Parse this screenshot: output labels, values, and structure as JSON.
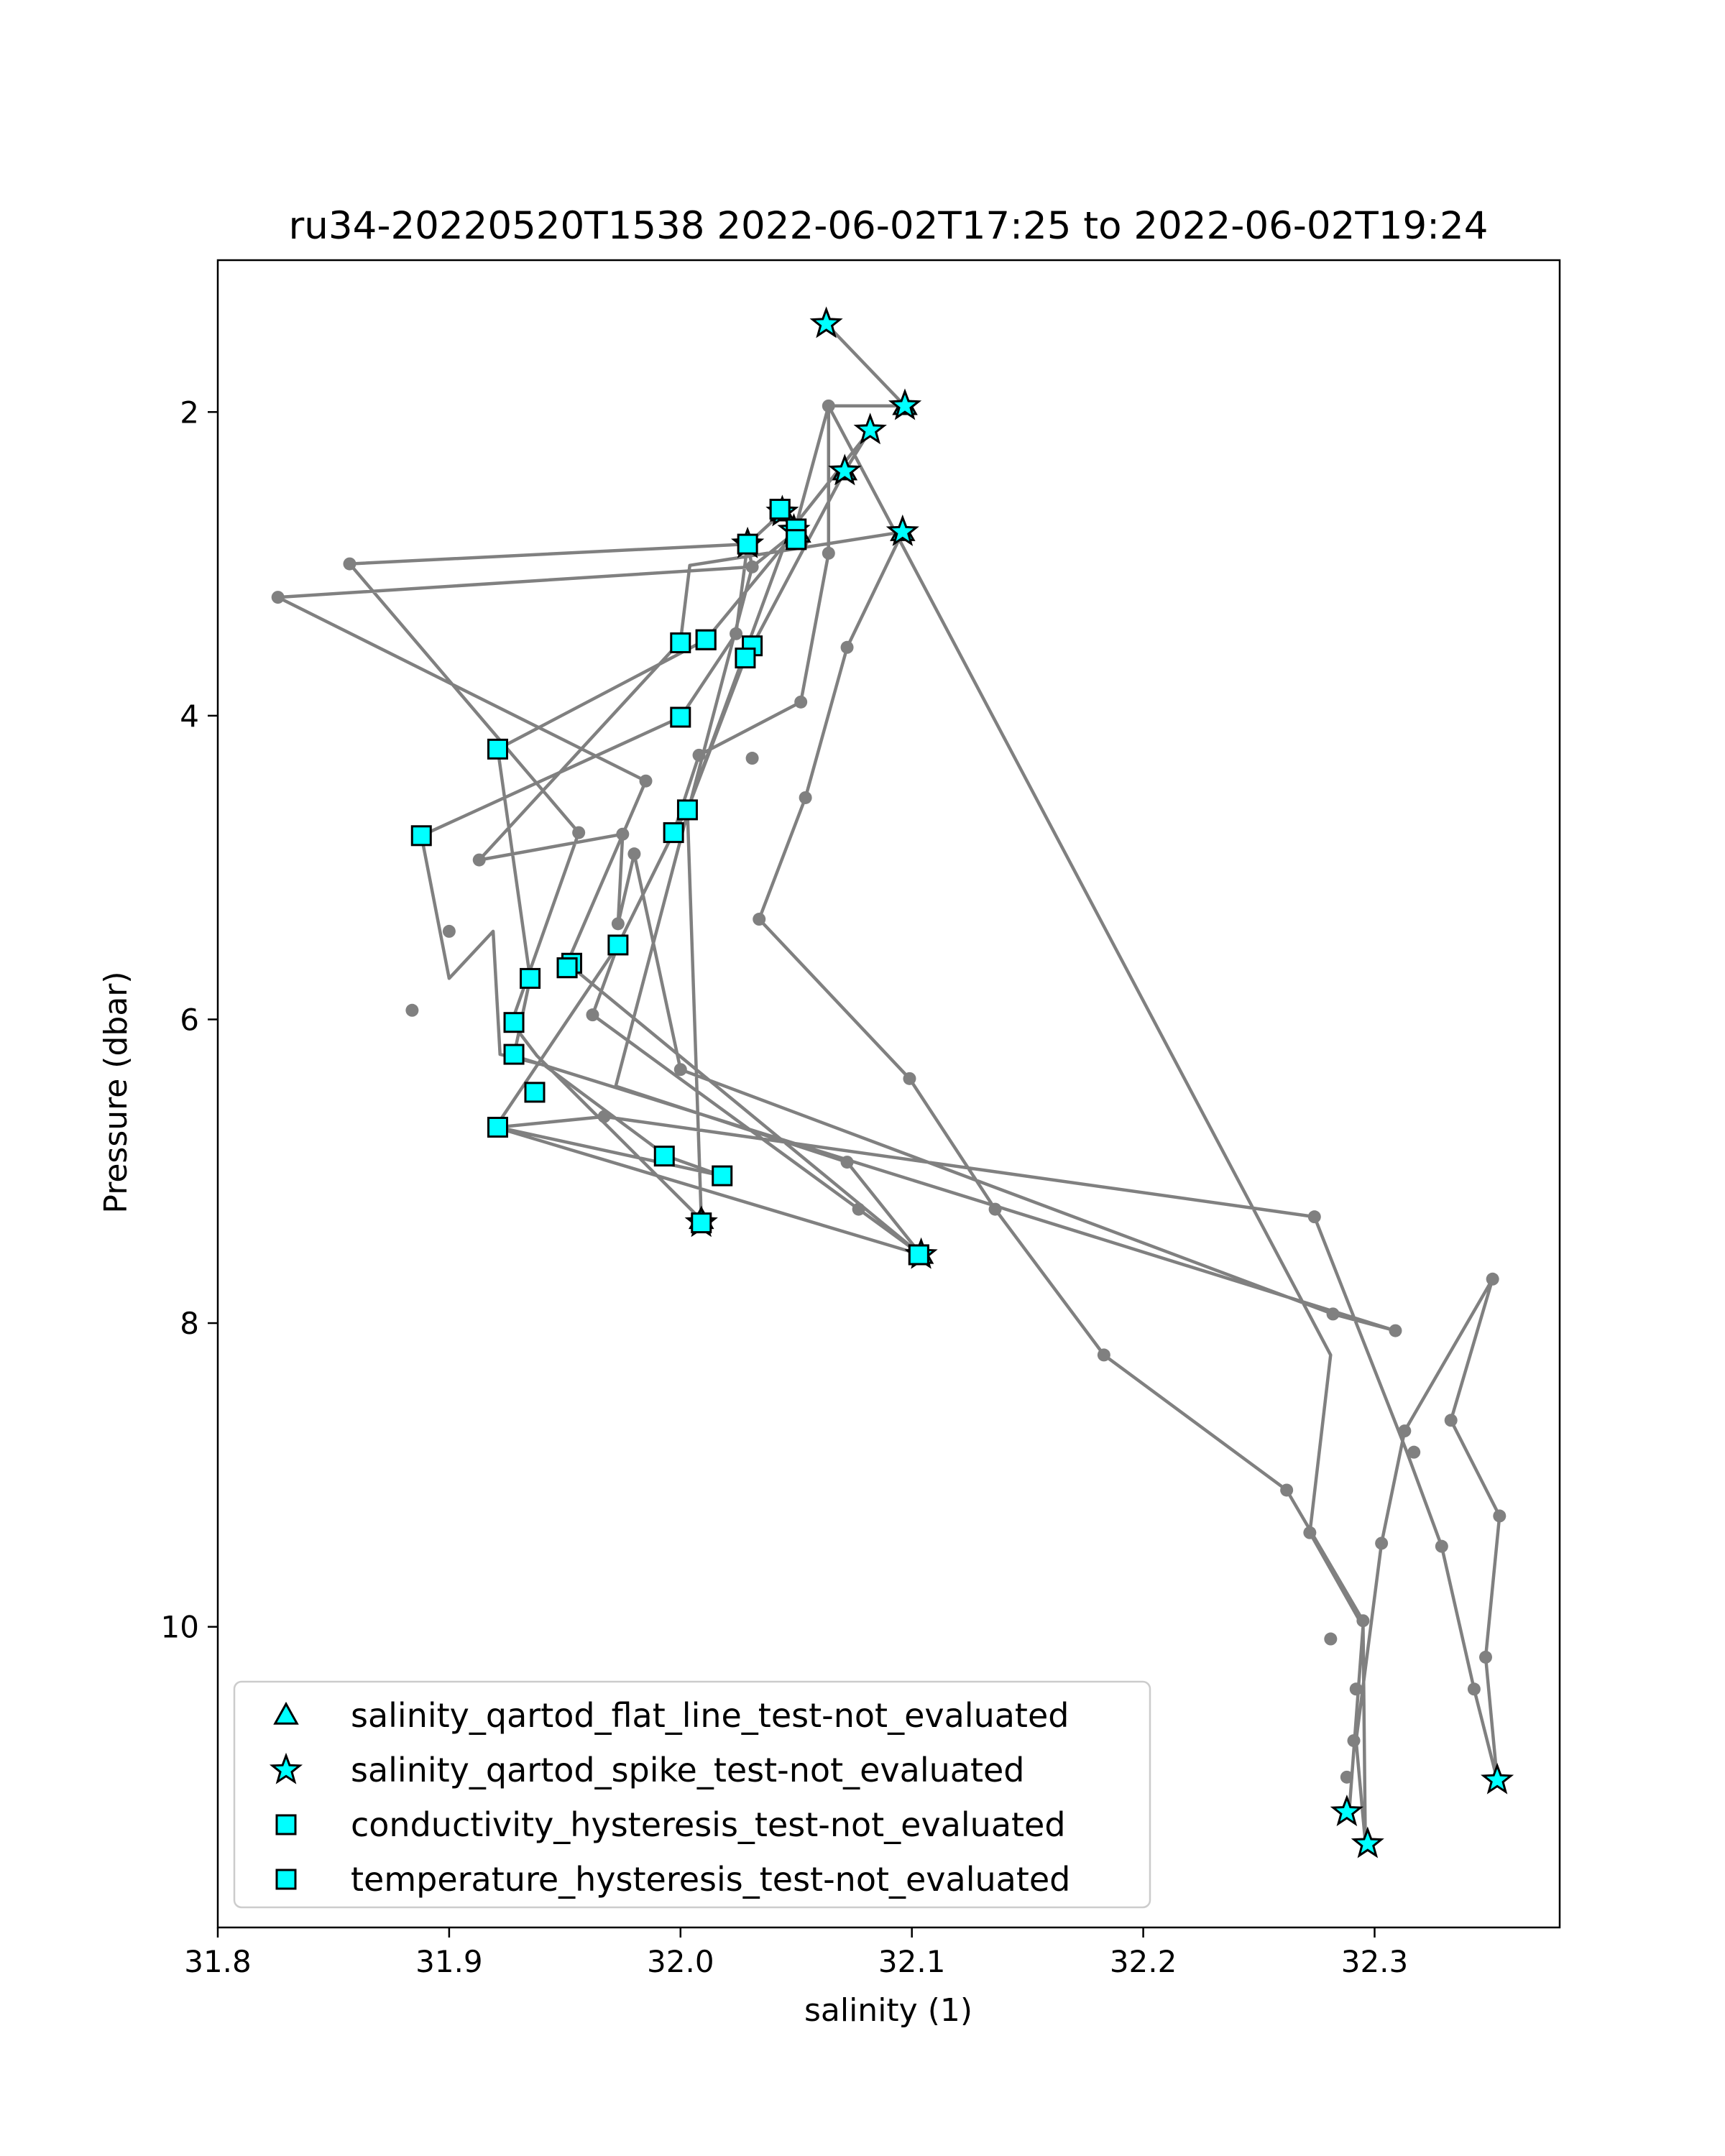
{
  "chart_data": {
    "type": "scatter",
    "title": "ru34-20220520T1538 2022-06-02T17:25 to 2022-06-02T19:24",
    "xlabel": "salinity (1)",
    "ylabel": "Pressure (dbar)",
    "xlim": [
      31.8,
      32.38
    ],
    "ylim": [
      11.98,
      1.0
    ],
    "y_inverted": true,
    "grid": false,
    "legend_position": "lower-left",
    "xticks": [
      31.8,
      31.9,
      32.0,
      32.1,
      32.2,
      32.3
    ],
    "xtick_labels": [
      "31.8",
      "31.9",
      "32.0",
      "32.1",
      "32.2",
      "32.3"
    ],
    "yticks": [
      2,
      4,
      6,
      8,
      10
    ],
    "ytick_labels": [
      "2",
      "4",
      "6",
      "8",
      "10"
    ],
    "colors": {
      "line": "#808080",
      "marker_fill": "#00ffff",
      "marker_edge": "#000000"
    },
    "profile_line": {
      "points": [
        [
          32.063,
          1.42
        ],
        [
          32.097,
          1.96
        ],
        [
          32.064,
          1.96
        ],
        [
          32.049,
          2.8
        ],
        [
          32.044,
          2.66
        ],
        [
          32.029,
          2.87
        ],
        [
          31.857,
          3.0
        ],
        [
          31.956,
          4.77
        ],
        [
          31.927,
          6.02
        ],
        [
          31.938,
          6.24
        ],
        [
          32.009,
          7.32
        ],
        [
          32.003,
          4.62
        ],
        [
          32.047,
          2.79
        ],
        [
          32.082,
          2.12
        ],
        [
          32.071,
          2.39
        ],
        [
          32.031,
          3.54
        ],
        [
          32.028,
          3.62
        ],
        [
          32.003,
          4.62
        ],
        [
          31.997,
          4.77
        ],
        [
          31.973,
          5.51
        ],
        [
          31.92,
          6.71
        ],
        [
          32.104,
          7.55
        ],
        [
          31.951,
          5.63
        ],
        [
          31.985,
          4.43
        ],
        [
          31.826,
          3.22
        ],
        [
          32.031,
          3.02
        ],
        [
          32.049,
          2.8
        ],
        [
          32.011,
          3.5
        ],
        [
          31.921,
          4.22
        ],
        [
          31.935,
          5.73
        ],
        [
          31.928,
          6.24
        ],
        [
          32.309,
          8.05
        ],
        [
          32.282,
          7.94
        ],
        [
          32.0,
          6.33
        ],
        [
          31.98,
          4.91
        ],
        [
          31.973,
          5.37
        ],
        [
          31.975,
          4.78
        ],
        [
          31.913,
          4.95
        ],
        [
          32.0,
          3.51
        ],
        [
          32.004,
          3.01
        ],
        [
          32.096,
          2.79
        ],
        [
          32.072,
          3.55
        ],
        [
          32.054,
          4.54
        ],
        [
          32.034,
          5.34
        ],
        [
          32.099,
          6.39
        ],
        [
          32.136,
          7.25
        ],
        [
          32.183,
          8.21
        ],
        [
          32.262,
          9.1
        ],
        [
          32.295,
          9.96
        ],
        [
          32.296,
          11.42
        ],
        [
          32.292,
          10.75
        ],
        [
          32.303,
          9.45
        ],
        [
          32.313,
          8.71
        ],
        [
          32.351,
          7.71
        ],
        [
          32.333,
          8.64
        ],
        [
          32.354,
          9.27
        ],
        [
          32.348,
          10.2
        ],
        [
          32.353,
          11.01
        ],
        [
          32.343,
          10.41
        ],
        [
          32.329,
          9.47
        ],
        [
          32.314,
          8.85
        ],
        [
          32.274,
          7.3
        ],
        [
          31.967,
          6.64
        ],
        [
          31.921,
          6.71
        ],
        [
          32.018,
          7.03
        ],
        [
          31.994,
          6.9
        ],
        [
          31.941,
          6.3
        ],
        [
          31.922,
          6.23
        ],
        [
          31.919,
          5.42
        ],
        [
          31.9,
          5.73
        ],
        [
          31.888,
          4.79
        ],
        [
          32.0,
          4.01
        ],
        [
          32.024,
          3.46
        ],
        [
          32.029,
          2.87
        ],
        [
          32.031,
          3.02
        ],
        [
          31.972,
          6.44
        ],
        [
          32.072,
          6.94
        ],
        [
          32.104,
          7.55
        ],
        [
          32.077,
          7.25
        ],
        [
          31.962,
          5.97
        ],
        [
          31.973,
          5.51
        ],
        [
          31.997,
          4.77
        ],
        [
          32.008,
          4.26
        ],
        [
          32.052,
          3.91
        ],
        [
          32.064,
          2.93
        ],
        [
          32.064,
          1.96
        ],
        [
          32.281,
          8.21
        ],
        [
          32.272,
          9.38
        ],
        [
          32.295,
          10.0
        ],
        [
          32.289,
          11.22
        ]
      ]
    },
    "small_dots": [
      [
        32.064,
        1.96
      ],
      [
        32.052,
        3.91
      ],
      [
        32.054,
        4.54
      ],
      [
        32.034,
        5.34
      ],
      [
        32.099,
        6.39
      ],
      [
        32.136,
        7.25
      ],
      [
        32.183,
        8.21
      ],
      [
        32.262,
        9.1
      ],
      [
        32.272,
        9.38
      ],
      [
        32.281,
        10.08
      ],
      [
        32.295,
        9.96
      ],
      [
        32.292,
        10.41
      ],
      [
        32.291,
        10.75
      ],
      [
        32.288,
        10.99
      ],
      [
        32.303,
        9.45
      ],
      [
        32.313,
        8.71
      ],
      [
        32.317,
        8.85
      ],
      [
        32.309,
        8.05
      ],
      [
        32.282,
        7.94
      ],
      [
        32.274,
        7.3
      ],
      [
        32.351,
        7.71
      ],
      [
        32.333,
        8.64
      ],
      [
        32.354,
        9.27
      ],
      [
        32.348,
        10.2
      ],
      [
        32.343,
        10.41
      ],
      [
        32.329,
        9.47
      ],
      [
        31.857,
        3.0
      ],
      [
        31.826,
        3.22
      ],
      [
        31.956,
        4.77
      ],
      [
        31.985,
        4.43
      ],
      [
        31.913,
        4.95
      ],
      [
        31.9,
        5.42
      ],
      [
        31.884,
        5.94
      ],
      [
        31.975,
        4.78
      ],
      [
        31.98,
        4.91
      ],
      [
        31.973,
        5.37
      ],
      [
        32.0,
        6.33
      ],
      [
        31.962,
        5.97
      ],
      [
        31.967,
        6.64
      ],
      [
        32.072,
        6.94
      ],
      [
        32.077,
        7.25
      ],
      [
        32.024,
        3.46
      ],
      [
        32.031,
        3.02
      ],
      [
        32.064,
        2.93
      ],
      [
        32.072,
        3.55
      ],
      [
        32.008,
        4.26
      ],
      [
        32.031,
        4.28
      ]
    ],
    "series": [
      {
        "name": "salinity_qartod_flat_line_test-not_evaluated",
        "marker": "triangle",
        "points": [
          [
            32.104,
            7.55
          ],
          [
            32.009,
            7.32
          ],
          [
            32.096,
            2.79
          ],
          [
            32.071,
            2.39
          ],
          [
            32.051,
            2.8
          ],
          [
            32.044,
            2.66
          ],
          [
            32.097,
            1.96
          ]
        ]
      },
      {
        "name": "salinity_qartod_spike_test-not_evaluated",
        "marker": "star",
        "points": [
          [
            32.063,
            1.42
          ],
          [
            32.097,
            1.96
          ],
          [
            32.082,
            2.12
          ],
          [
            32.071,
            2.39
          ],
          [
            32.044,
            2.66
          ],
          [
            32.049,
            2.78
          ],
          [
            32.029,
            2.87
          ],
          [
            32.096,
            2.79
          ],
          [
            32.009,
            7.34
          ],
          [
            32.104,
            7.55
          ],
          [
            32.353,
            11.01
          ],
          [
            32.288,
            11.22
          ],
          [
            32.297,
            11.43
          ]
        ]
      },
      {
        "name": "conductivity_hysteresis_test-not_evaluated",
        "marker": "square",
        "points": [
          [
            32.043,
            2.64
          ],
          [
            32.05,
            2.77
          ],
          [
            32.05,
            2.84
          ],
          [
            32.029,
            2.87
          ],
          [
            32.0,
            3.52
          ],
          [
            32.011,
            3.5
          ],
          [
            32.031,
            3.54
          ],
          [
            32.028,
            3.62
          ],
          [
            32.0,
            4.01
          ],
          [
            31.921,
            4.22
          ],
          [
            32.003,
            4.62
          ],
          [
            31.997,
            4.77
          ],
          [
            31.888,
            4.79
          ],
          [
            31.973,
            5.51
          ],
          [
            31.953,
            5.63
          ],
          [
            31.951,
            5.66
          ],
          [
            31.935,
            5.73
          ],
          [
            31.928,
            6.02
          ],
          [
            31.928,
            6.23
          ],
          [
            31.937,
            6.48
          ],
          [
            31.921,
            6.71
          ],
          [
            31.993,
            6.9
          ],
          [
            32.018,
            7.03
          ],
          [
            32.009,
            7.34
          ],
          [
            32.103,
            7.55
          ]
        ]
      },
      {
        "name": "temperature_hysteresis_test-not_evaluated",
        "marker": "square",
        "points": [
          [
            32.043,
            2.64
          ],
          [
            32.05,
            2.84
          ],
          [
            32.011,
            3.5
          ],
          [
            31.951,
            5.66
          ],
          [
            32.103,
            7.55
          ]
        ]
      }
    ]
  }
}
